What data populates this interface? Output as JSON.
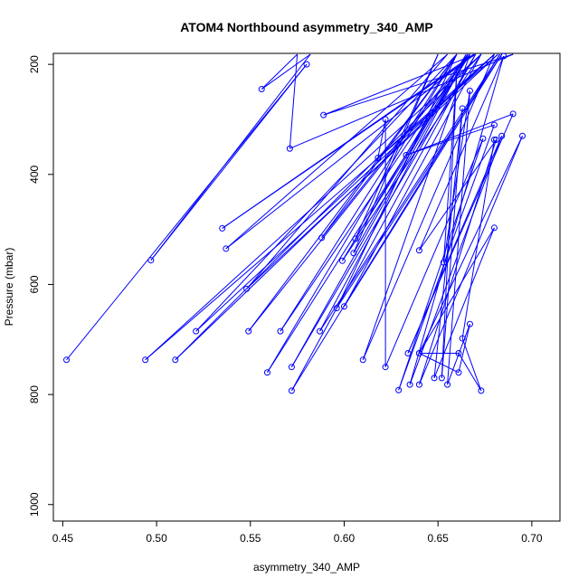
{
  "chart_data": {
    "type": "line",
    "title": "ATOM4 Northbound asymmetry_340_AMP",
    "xlabel": "asymmetry_340_AMP",
    "ylabel": "Pressure (mbar)",
    "xlim": [
      0.445,
      0.715
    ],
    "ylim": [
      1030,
      180
    ],
    "y_reversed": true,
    "x_ticks": [
      "0.45",
      "0.50",
      "0.55",
      "0.60",
      "0.65",
      "0.70"
    ],
    "y_ticks": [
      "200",
      "400",
      "600",
      "800",
      "1000"
    ],
    "grid": false,
    "series_color": "#0000ff",
    "points": [
      [
        0.452,
        737
      ],
      [
        0.58,
        200
      ],
      [
        0.497,
        556
      ],
      [
        0.582,
        180
      ],
      [
        0.556,
        245
      ],
      [
        0.575,
        180
      ],
      [
        0.571,
        353
      ],
      [
        0.69,
        180
      ],
      [
        0.589,
        292
      ],
      [
        0.67,
        180
      ],
      [
        0.535,
        498
      ],
      [
        0.669,
        180
      ],
      [
        0.537,
        535
      ],
      [
        0.655,
        180
      ],
      [
        0.548,
        608
      ],
      [
        0.682,
        180
      ],
      [
        0.494,
        737
      ],
      [
        0.673,
        180
      ],
      [
        0.51,
        737
      ],
      [
        0.68,
        180
      ],
      [
        0.521,
        685
      ],
      [
        0.66,
        180
      ],
      [
        0.549,
        685
      ],
      [
        0.667,
        180
      ],
      [
        0.559,
        760
      ],
      [
        0.66,
        180
      ],
      [
        0.566,
        685
      ],
      [
        0.666,
        180
      ],
      [
        0.572,
        750
      ],
      [
        0.67,
        180
      ],
      [
        0.572,
        793
      ],
      [
        0.683,
        180
      ],
      [
        0.587,
        685
      ],
      [
        0.666,
        180
      ],
      [
        0.588,
        515
      ],
      [
        0.66,
        180
      ],
      [
        0.596,
        643
      ],
      [
        0.684,
        180
      ],
      [
        0.6,
        640
      ],
      [
        0.673,
        180
      ],
      [
        0.599,
        557
      ],
      [
        0.665,
        180
      ],
      [
        0.605,
        543
      ],
      [
        0.65,
        180
      ],
      [
        0.606,
        517
      ],
      [
        0.667,
        180
      ],
      [
        0.61,
        737
      ],
      [
        0.68,
        180
      ],
      [
        0.618,
        370
      ],
      [
        0.622,
        300
      ],
      [
        0.622,
        750
      ],
      [
        0.674,
        335
      ],
      [
        0.629,
        792
      ],
      [
        0.68,
        310
      ],
      [
        0.633,
        365
      ],
      [
        0.69,
        290
      ],
      [
        0.634,
        725
      ],
      [
        0.684,
        330
      ],
      [
        0.635,
        782
      ],
      [
        0.685,
        185
      ],
      [
        0.64,
        538
      ],
      [
        0.681,
        337
      ],
      [
        0.64,
        782
      ],
      [
        0.695,
        330
      ],
      [
        0.64,
        725
      ],
      [
        0.68,
        497
      ],
      [
        0.648,
        770
      ],
      [
        0.663,
        280
      ],
      [
        0.652,
        770
      ],
      [
        0.66,
        215
      ],
      [
        0.653,
        560
      ],
      [
        0.667,
        248
      ],
      [
        0.655,
        782
      ],
      [
        0.667,
        672
      ],
      [
        0.661,
        760
      ],
      [
        0.64,
        725
      ],
      [
        0.661,
        725
      ],
      [
        0.673,
        793
      ],
      [
        0.663,
        698
      ],
      [
        0.68,
        337
      ]
    ]
  }
}
